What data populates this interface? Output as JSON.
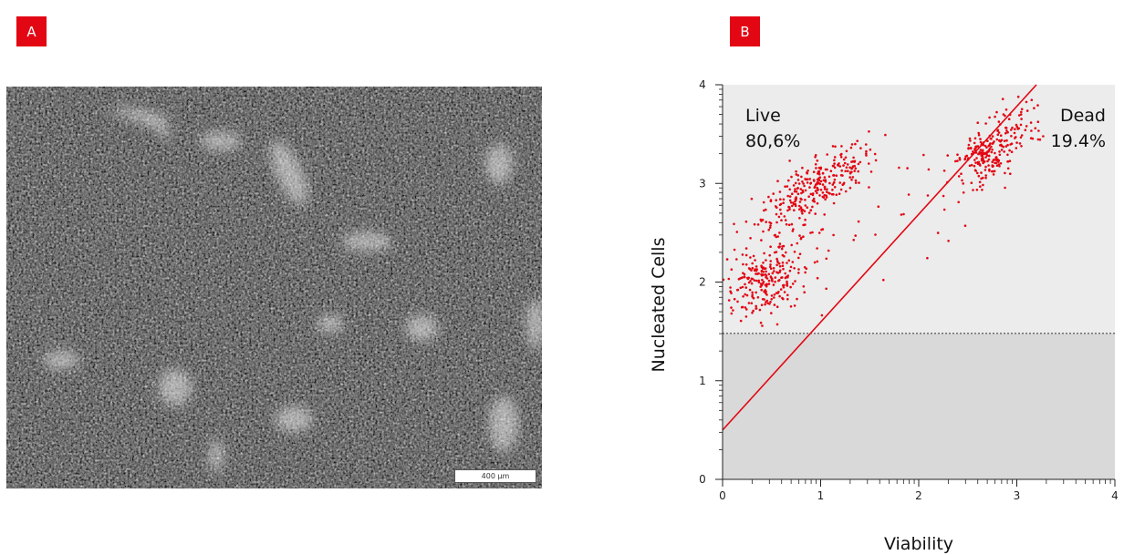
{
  "panels": {
    "a_label": "A",
    "b_label": "B"
  },
  "micrograph": {
    "scale_bar_label": "400 µm"
  },
  "chart_data": {
    "type": "scatter",
    "xlabel": "Viability",
    "ylabel": "Nucleated Cells",
    "xlim": [
      0,
      4
    ],
    "ylim": [
      0,
      4
    ],
    "xticks": [
      "0",
      "1",
      "2",
      "3",
      "4"
    ],
    "yticks": [
      "0",
      "1",
      "2",
      "3",
      "4"
    ],
    "x_scale": "linear with minor ticks",
    "gate_threshold_y": 1.48,
    "regions": {
      "upper_fill": "#ececec",
      "lower_fill": "#d9d9d9"
    },
    "separator_line": {
      "from": [
        0,
        0.5
      ],
      "to": [
        3.2,
        4.0
      ],
      "color": "#e30613"
    },
    "annotations": [
      {
        "text": "Live",
        "text2": "80,6%",
        "anchor": "upper-left"
      },
      {
        "text": "Dead",
        "text2": "19.4%",
        "anchor": "upper-right"
      }
    ],
    "series": [
      {
        "color": "#e30613",
        "clusters": [
          {
            "cx": 0.42,
            "cy": 2.0,
            "sx": 0.2,
            "sy": 0.17,
            "n": 230,
            "rot": 0.45
          },
          {
            "cx": 1.0,
            "cy": 3.0,
            "sx": 0.34,
            "sy": 0.11,
            "n": 260,
            "rot": 0.55
          },
          {
            "cx": 0.7,
            "cy": 2.5,
            "sx": 0.22,
            "sy": 0.22,
            "n": 70,
            "rot": 0.5
          },
          {
            "cx": 2.68,
            "cy": 3.27,
            "sx": 0.16,
            "sy": 0.13,
            "n": 190,
            "rot": 0.65
          },
          {
            "cx": 2.95,
            "cy": 3.55,
            "sx": 0.15,
            "sy": 0.13,
            "n": 60,
            "rot": 0.6
          },
          {
            "cx": 1.8,
            "cy": 2.8,
            "sx": 0.35,
            "sy": 0.35,
            "n": 25,
            "rot": 0.0
          }
        ]
      }
    ]
  }
}
